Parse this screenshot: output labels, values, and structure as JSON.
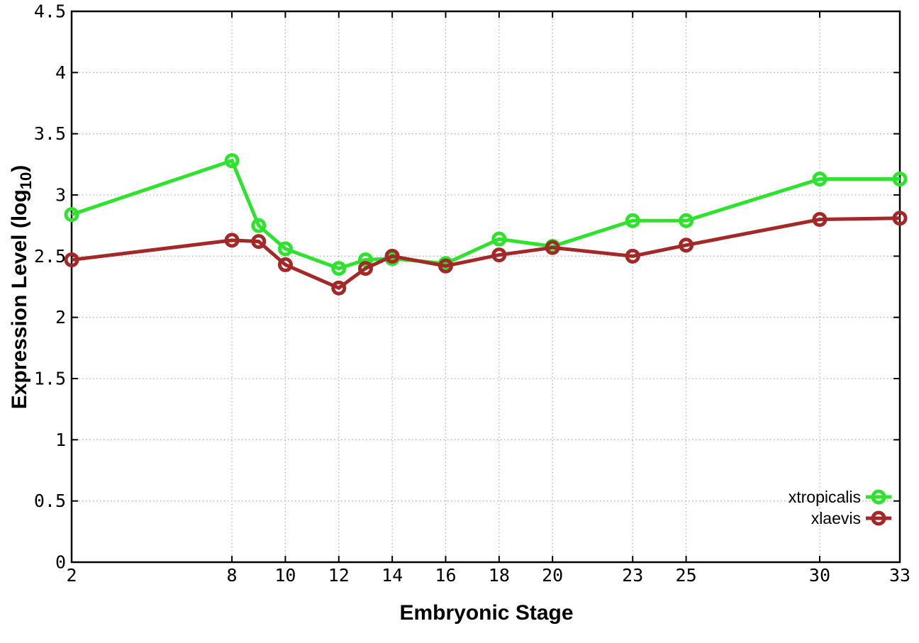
{
  "chart_data": {
    "type": "line",
    "title": "",
    "xlabel": "Embryonic Stage",
    "ylabel": "Expression Level (log10)",
    "ylabel_parts": {
      "main": "Expression Level (log",
      "sub": "10",
      "close": ")"
    },
    "x": [
      2,
      8,
      9,
      10,
      12,
      13,
      14,
      16,
      18,
      20,
      23,
      25,
      30,
      33
    ],
    "series": [
      {
        "name": "xtropicalis",
        "color": "#2ee22e",
        "values": [
          2.84,
          3.28,
          2.75,
          2.56,
          2.4,
          2.47,
          2.48,
          2.44,
          2.64,
          2.58,
          2.79,
          2.79,
          3.13,
          3.13
        ]
      },
      {
        "name": "xlaevis",
        "color": "#a32929",
        "values": [
          2.47,
          2.63,
          2.62,
          2.43,
          2.24,
          2.4,
          2.5,
          2.42,
          2.51,
          2.57,
          2.5,
          2.59,
          2.8,
          2.81
        ]
      }
    ],
    "x_ticks": [
      2,
      8,
      10,
      12,
      14,
      16,
      18,
      20,
      23,
      25,
      30,
      33
    ],
    "x_tick_labels": [
      "2",
      "8",
      "10",
      "12",
      "14",
      "16",
      "18",
      "20",
      "23",
      "25",
      "30",
      "33"
    ],
    "y_ticks": [
      0,
      0.5,
      1,
      1.5,
      2,
      2.5,
      3,
      3.5,
      4,
      4.5
    ],
    "y_tick_labels": [
      "0",
      "0.5",
      "1",
      "1.5",
      "2",
      "2.5",
      "3",
      "3.5",
      "4",
      "4.5"
    ],
    "xlim": [
      2,
      33
    ],
    "ylim": [
      0,
      4.5
    ],
    "grid": true,
    "legend_position": "bottom-right",
    "marker": "open-circle",
    "background": "#ffffff",
    "grid_color": "#b3b3b3",
    "axis_color": "#000000"
  }
}
